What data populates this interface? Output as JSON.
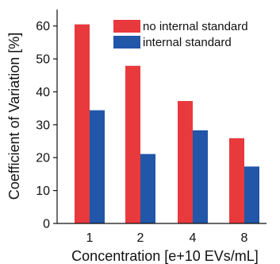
{
  "chart_data": {
    "type": "bar",
    "categories": [
      "1",
      "2",
      "4",
      "8"
    ],
    "series": [
      {
        "name": "no internal standard",
        "values": [
          60.5,
          47.9,
          37.2,
          25.9
        ],
        "color": "#e8393d"
      },
      {
        "name": "internal standard",
        "values": [
          34.4,
          21.1,
          28.3,
          17.3
        ],
        "color": "#2156a8"
      }
    ],
    "xlabel": "Concentration [e+10 EVs/mL]",
    "ylabel": "Coefficient of Variation [%]",
    "ylim": [
      0,
      65
    ],
    "yticks": [
      "0",
      "10",
      "20",
      "30",
      "40",
      "50",
      "60"
    ],
    "grid": false,
    "legend_position": "top-right"
  }
}
